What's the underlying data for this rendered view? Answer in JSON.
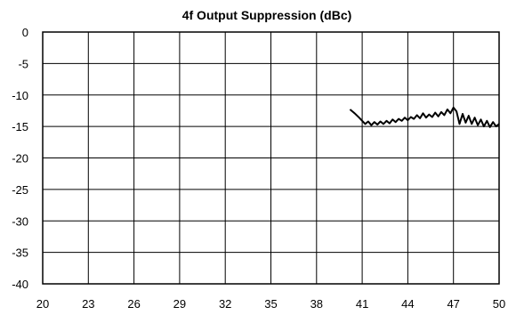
{
  "chart_data": {
    "type": "line",
    "title": "4f Output Suppression (dBc)",
    "xlabel": "",
    "ylabel": "",
    "xlim": [
      20,
      50
    ],
    "ylim": [
      -40,
      0
    ],
    "x_ticks": [
      "20",
      "23",
      "26",
      "29",
      "32",
      "35",
      "38",
      "41",
      "44",
      "47",
      "50"
    ],
    "y_ticks": [
      "0",
      "-5",
      "-10",
      "-15",
      "-20",
      "-25",
      "-30",
      "-35",
      "-40"
    ],
    "grid": true,
    "legend": "none",
    "series": [
      {
        "color": "#000000",
        "x": [
          40.2,
          40.5,
          40.8,
          41.0,
          41.2,
          41.4,
          41.6,
          41.8,
          42.0,
          42.2,
          42.4,
          42.6,
          42.8,
          43.0,
          43.2,
          43.4,
          43.6,
          43.8,
          44.0,
          44.2,
          44.4,
          44.6,
          44.8,
          45.0,
          45.2,
          45.4,
          45.6,
          45.8,
          46.0,
          46.2,
          46.4,
          46.6,
          46.8,
          47.0,
          47.2,
          47.4,
          47.6,
          47.8,
          48.0,
          48.2,
          48.4,
          48.6,
          48.8,
          49.0,
          49.2,
          49.4,
          49.6,
          49.8,
          50.0
        ],
        "y": [
          -12.3,
          -12.9,
          -13.6,
          -14.1,
          -14.6,
          -14.2,
          -14.8,
          -14.3,
          -14.7,
          -14.2,
          -14.6,
          -14.1,
          -14.5,
          -13.9,
          -14.3,
          -13.8,
          -14.1,
          -13.6,
          -14.0,
          -13.5,
          -13.8,
          -13.2,
          -13.7,
          -12.9,
          -13.6,
          -13.1,
          -13.5,
          -12.8,
          -13.4,
          -12.7,
          -13.2,
          -12.3,
          -12.9,
          -12.0,
          -12.6,
          -14.6,
          -13.0,
          -14.4,
          -13.3,
          -14.6,
          -13.6,
          -14.8,
          -13.9,
          -15.0,
          -14.1,
          -15.1,
          -14.3,
          -15.0,
          -14.6
        ]
      }
    ]
  }
}
